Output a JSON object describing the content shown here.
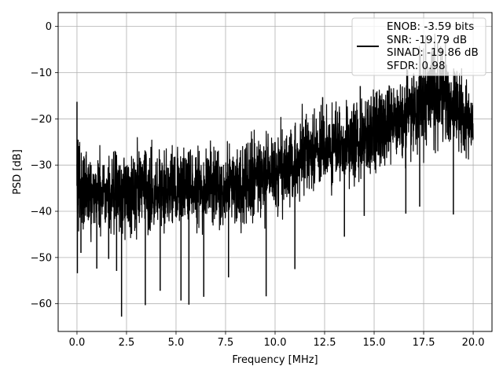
{
  "chart_data": {
    "type": "line",
    "title": "",
    "xlabel": "Frequency [MHz]",
    "ylabel": "PSD [dB]",
    "xlim": [
      -0.95,
      20.95
    ],
    "ylim": [
      -66,
      3
    ],
    "xticks": [
      0.0,
      2.5,
      5.0,
      7.5,
      10.0,
      12.5,
      15.0,
      17.5,
      20.0
    ],
    "xtick_labels": [
      "0.0",
      "2.5",
      "5.0",
      "7.5",
      "10.0",
      "12.5",
      "15.0",
      "17.5",
      "20.0"
    ],
    "yticks": [
      0,
      -10,
      -20,
      -30,
      -40,
      -50,
      -60
    ],
    "ytick_labels": [
      "0",
      "−10",
      "−20",
      "−30",
      "−40",
      "−50",
      "−60"
    ],
    "grid": true,
    "legend_position": "top-right",
    "legend_lines": [
      "ENOB: -3.59 bits",
      "SNR: -19.79 dB",
      "SINAD: -19.86 dB",
      "SFDR: 0.98"
    ],
    "series": [
      {
        "color": "#000000",
        "envelope": {
          "x": [
            0,
            0.5,
            1,
            1.5,
            2,
            2.5,
            3,
            3.5,
            4,
            4.5,
            5,
            5.5,
            6,
            6.5,
            7,
            7.5,
            8,
            8.5,
            9,
            9.5,
            10,
            10.5,
            11,
            11.5,
            12,
            12.5,
            13,
            13.5,
            14,
            14.5,
            15,
            15.5,
            16,
            16.5,
            17,
            17.5,
            18,
            18.5,
            19,
            19.5,
            20
          ],
          "upper": [
            -25,
            -26,
            -26,
            -26,
            -26,
            -26,
            -26,
            -26,
            -26,
            -26,
            -25,
            -25,
            -25,
            -25,
            -25,
            -25,
            -25,
            -24,
            -24,
            -23,
            -22,
            -21,
            -20,
            -19,
            -18,
            -17,
            -17,
            -17,
            -16,
            -15,
            -14,
            -13,
            -12,
            -11,
            -8,
            -4,
            -3,
            -5,
            -7,
            -10,
            -13
          ],
          "lower": [
            -44,
            -45,
            -45,
            -46,
            -46,
            -46,
            -46,
            -45,
            -45,
            -45,
            -44,
            -44,
            -44,
            -44,
            -44,
            -44,
            -43,
            -43,
            -43,
            -42,
            -41,
            -40,
            -39,
            -38,
            -37,
            -36,
            -36,
            -35,
            -34,
            -33,
            -32,
            -31,
            -30,
            -29,
            -28,
            -27,
            -26,
            -27,
            -28,
            -29,
            -30
          ]
        },
        "spikes": [
          {
            "x": 0.0,
            "y": -16.3
          },
          {
            "x": 0.05,
            "y": -24.5
          },
          {
            "x": 0.02,
            "y": -53.4
          },
          {
            "x": 0.2,
            "y": -49.0
          },
          {
            "x": 1.0,
            "y": -52.4
          },
          {
            "x": 1.6,
            "y": -50.3
          },
          {
            "x": 2.0,
            "y": -52.9
          },
          {
            "x": 2.25,
            "y": -62.8
          },
          {
            "x": 3.45,
            "y": -60.3
          },
          {
            "x": 4.2,
            "y": -57.2
          },
          {
            "x": 5.25,
            "y": -59.3
          },
          {
            "x": 5.65,
            "y": -60.2
          },
          {
            "x": 6.4,
            "y": -58.5
          },
          {
            "x": 7.65,
            "y": -54.3
          },
          {
            "x": 9.55,
            "y": -58.4
          },
          {
            "x": 11.0,
            "y": -52.5
          },
          {
            "x": 13.5,
            "y": -45.5
          },
          {
            "x": 14.5,
            "y": -41.0
          },
          {
            "x": 16.6,
            "y": -40.5
          },
          {
            "x": 17.3,
            "y": -39.0
          },
          {
            "x": 19.0,
            "y": -40.7
          },
          {
            "x": 19.9,
            "y": -25.3
          },
          {
            "x": 16.65,
            "y": -9.0
          },
          {
            "x": 17.3,
            "y": -4.8
          },
          {
            "x": 17.6,
            "y": -1.9
          },
          {
            "x": 18.2,
            "y": -3.4
          },
          {
            "x": 18.6,
            "y": -3.0
          },
          {
            "x": 14.3,
            "y": -12.9
          },
          {
            "x": 15.1,
            "y": -14.3
          },
          {
            "x": 12.4,
            "y": -15.3
          }
        ]
      }
    ]
  }
}
